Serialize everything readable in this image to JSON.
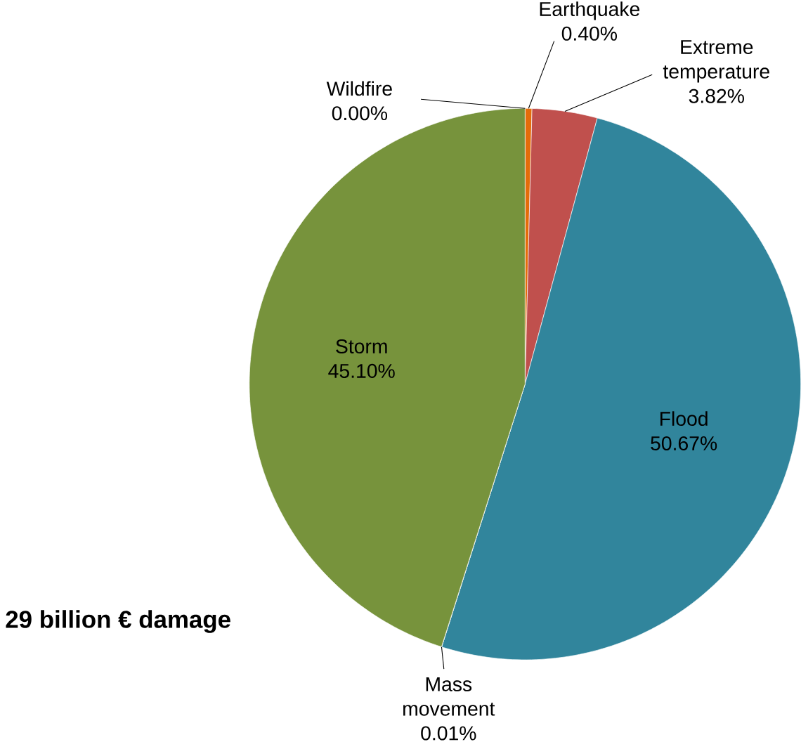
{
  "chart_data": {
    "type": "pie",
    "categories": [
      "Earthquake",
      "Extreme temperature",
      "Flood",
      "Mass movement",
      "Storm",
      "Wildfire"
    ],
    "values": [
      0.4,
      3.82,
      50.67,
      0.01,
      45.1,
      0.0
    ],
    "value_labels": [
      "0.40%",
      "3.82%",
      "50.67%",
      "0.01%",
      "45.10%",
      "0.00%"
    ],
    "colors": [
      "#e46c0a",
      "#c0504d",
      "#31859c",
      "#8064a2",
      "#77933c",
      "#4f81bd"
    ],
    "annotations": [
      "29 billion € damage"
    ]
  }
}
